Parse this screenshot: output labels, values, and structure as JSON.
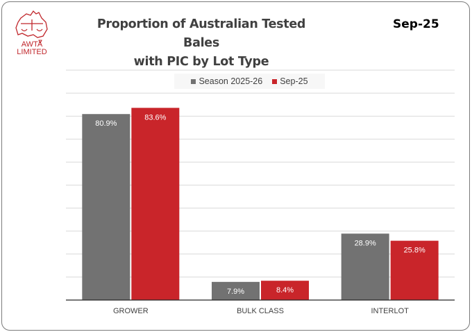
{
  "header": {
    "title_line1": "Proportion of Australian Tested Bales",
    "title_line2": "with PIC by Lot Type",
    "period": "Sep-25",
    "logo_text_1": "AWTA",
    "logo_text_2": "LIMITED"
  },
  "colors": {
    "season": "#727272",
    "month": "#c9252a",
    "brand": "#c0262b"
  },
  "chart_data": {
    "type": "bar",
    "title": "Proportion of Australian Tested Bales with PIC by Lot Type",
    "categories": [
      "GROWER",
      "BULK CLASS",
      "INTERLOT"
    ],
    "series": [
      {
        "name": "Season 2025-26",
        "values": [
          80.9,
          7.9,
          28.9
        ],
        "labels": [
          "80.9%",
          "7.9%",
          "28.9%"
        ]
      },
      {
        "name": "Sep-25",
        "values": [
          83.6,
          8.4,
          25.8
        ],
        "labels": [
          "83.6%",
          "8.4%",
          "25.8%"
        ]
      }
    ],
    "ylim": [
      0,
      100
    ],
    "grid": true,
    "legend": "top-center",
    "xlabel": "",
    "ylabel": ""
  }
}
